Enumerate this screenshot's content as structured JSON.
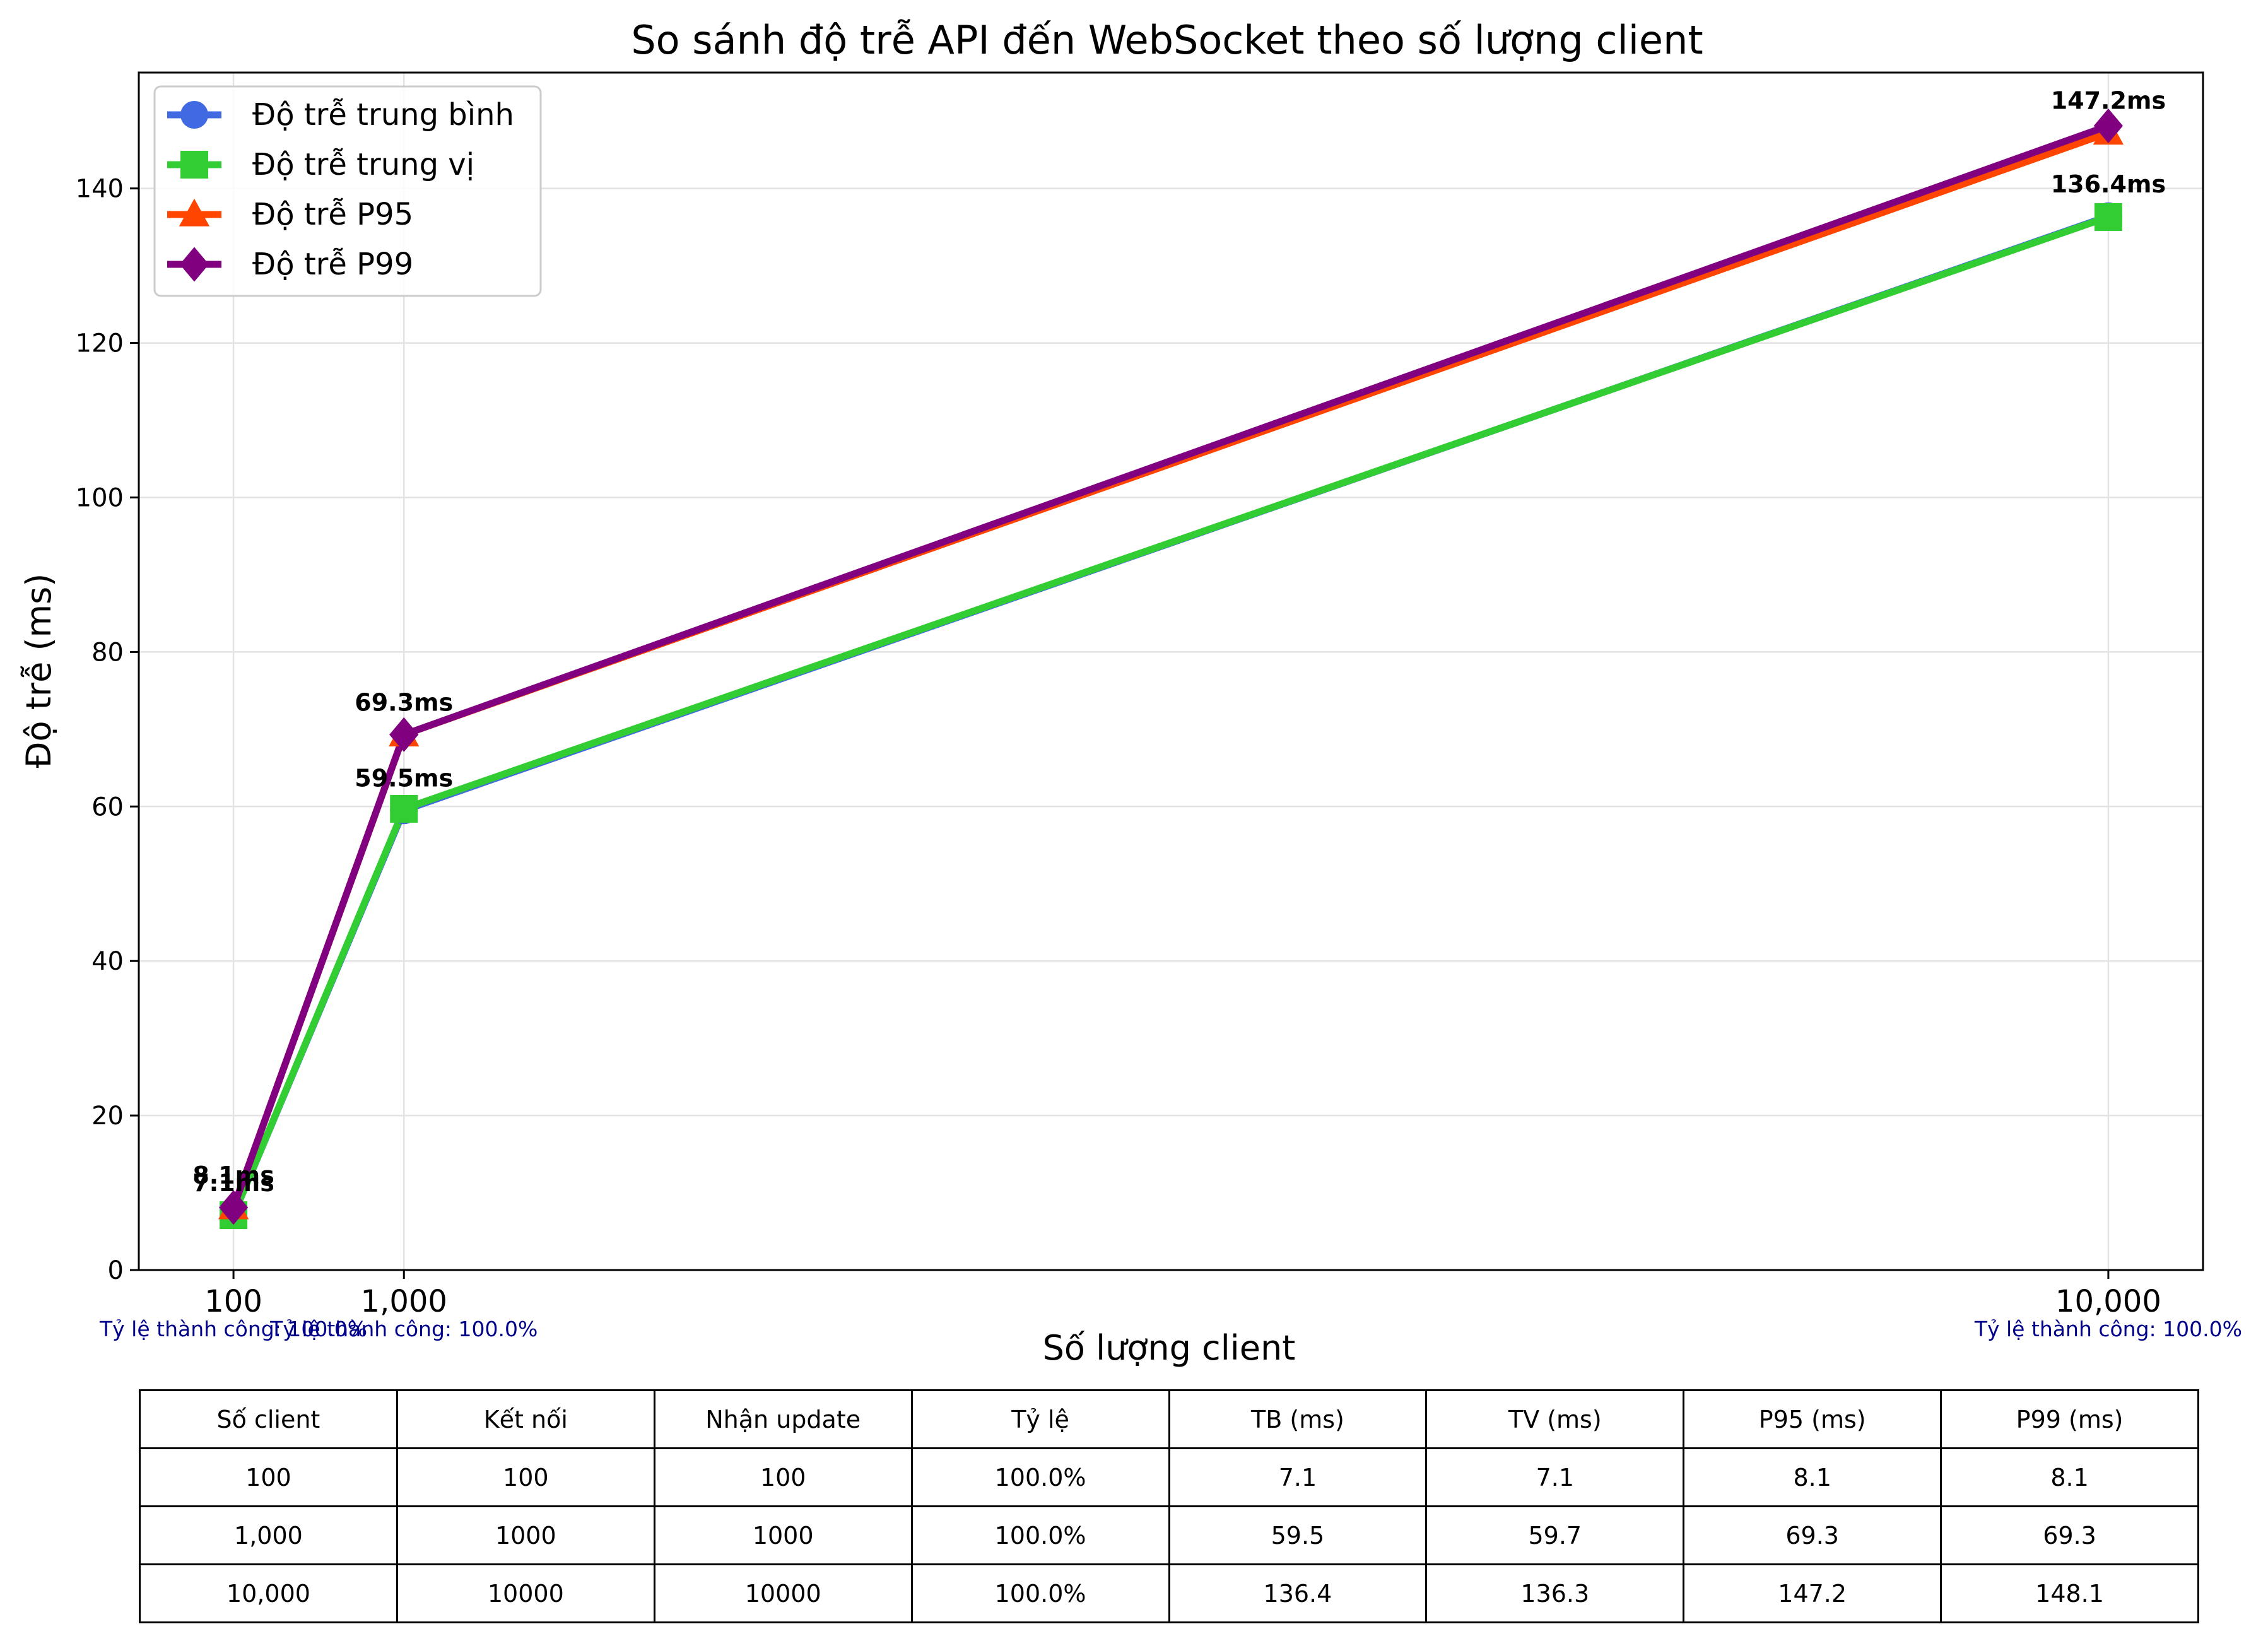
{
  "chart_data": {
    "type": "line",
    "title": "So sánh độ trễ API đến WebSocket theo số lượng client",
    "xlabel": "Số lượng client",
    "ylabel": "Độ trễ (ms)",
    "x": [
      100,
      1000,
      10000
    ],
    "x_tick_labels": [
      "100",
      "1,000",
      "10,000"
    ],
    "xlim": [
      -400,
      10500
    ],
    "ylim": [
      0,
      155
    ],
    "y_ticks": [
      0,
      20,
      40,
      60,
      80,
      100,
      120,
      140
    ],
    "grid": true,
    "legend_position": "top-left",
    "series": [
      {
        "name": "Độ trễ trung bình",
        "values": [
          7.1,
          59.5,
          136.4
        ],
        "color": "#4169E1",
        "marker": "circle"
      },
      {
        "name": "Độ trễ trung vị",
        "values": [
          7.1,
          59.7,
          136.3
        ],
        "color": "#32CD32",
        "marker": "square"
      },
      {
        "name": "Độ trễ P95",
        "values": [
          8.1,
          69.3,
          147.2
        ],
        "color": "#FF4500",
        "marker": "triangle"
      },
      {
        "name": "Độ trễ P99",
        "values": [
          8.1,
          69.3,
          148.1
        ],
        "color": "#800080",
        "marker": "diamond"
      }
    ],
    "annotations": [
      {
        "x": 100,
        "y": 8.1,
        "text": "8.1ms"
      },
      {
        "x": 100,
        "y": 7.1,
        "text": "7.1ms"
      },
      {
        "x": 1000,
        "y": 69.3,
        "text": "69.3ms"
      },
      {
        "x": 1000,
        "y": 59.5,
        "text": "59.5ms"
      },
      {
        "x": 10000,
        "y": 147.2,
        "text": "147.2ms"
      },
      {
        "x": 10000,
        "y": 136.4,
        "text": "136.4ms"
      }
    ],
    "success_notes": [
      {
        "x": 100,
        "text": "Tỷ lệ thành công: 100.0%"
      },
      {
        "x": 1000,
        "text": "Tỷ lệ thành công: 100.0%"
      },
      {
        "x": 10000,
        "text": "Tỷ lệ thành công: 100.0%"
      }
    ],
    "success_color": "#00008B"
  },
  "table": {
    "headers": [
      "Số client",
      "Kết nối",
      "Nhận update",
      "Tỷ lệ",
      "TB (ms)",
      "TV (ms)",
      "P95 (ms)",
      "P99 (ms)"
    ],
    "rows": [
      [
        "100",
        "100",
        "100",
        "100.0%",
        "7.1",
        "7.1",
        "8.1",
        "8.1"
      ],
      [
        "1,000",
        "1000",
        "1000",
        "100.0%",
        "59.5",
        "59.7",
        "69.3",
        "69.3"
      ],
      [
        "10,000",
        "10000",
        "10000",
        "100.0%",
        "136.4",
        "136.3",
        "147.2",
        "148.1"
      ]
    ]
  }
}
